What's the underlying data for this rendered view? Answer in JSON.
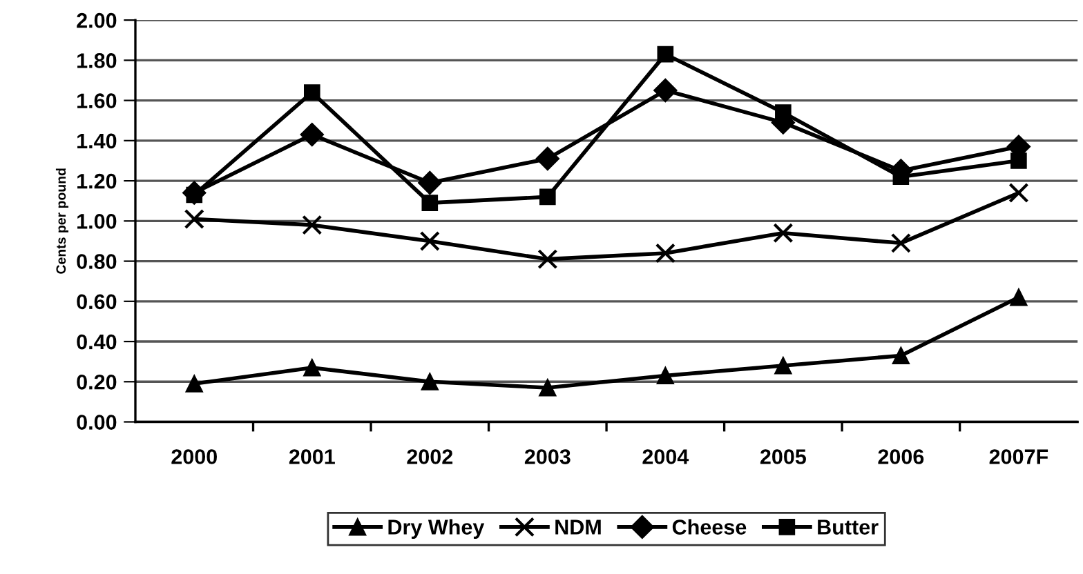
{
  "chart_data": {
    "type": "line",
    "ylabel": "Cents per pound",
    "categories": [
      "2000",
      "2001",
      "2002",
      "2003",
      "2004",
      "2005",
      "2006",
      "2007F"
    ],
    "ylim": [
      0,
      2
    ],
    "yticks": [
      {
        "value": 0,
        "label": "0.00"
      },
      {
        "value": 0.2,
        "label": "0.20"
      },
      {
        "value": 0.4,
        "label": "0.40"
      },
      {
        "value": 0.6,
        "label": "0.60"
      },
      {
        "value": 0.8,
        "label": "0.80"
      },
      {
        "value": 1.0,
        "label": "1.00"
      },
      {
        "value": 1.2,
        "label": "1.20"
      },
      {
        "value": 1.4,
        "label": "1.40"
      },
      {
        "value": 1.6,
        "label": "1.60"
      },
      {
        "value": 1.8,
        "label": "1.80"
      },
      {
        "value": 2.0,
        "label": "2.00"
      }
    ],
    "grid": "y",
    "legend": "bottom",
    "line_style": "solid",
    "series": [
      {
        "name": "Dry Whey",
        "color": "#000000",
        "marker": "triangle",
        "values": [
          0.19,
          0.27,
          0.2,
          0.17,
          0.23,
          0.28,
          0.33,
          0.62
        ]
      },
      {
        "name": "NDM",
        "color": "#000000",
        "marker": "cross",
        "values": [
          1.01,
          0.98,
          0.9,
          0.81,
          0.84,
          0.94,
          0.89,
          1.14
        ]
      },
      {
        "name": "Cheese",
        "color": "#000000",
        "marker": "diamond",
        "values": [
          1.14,
          1.43,
          1.19,
          1.31,
          1.65,
          1.49,
          1.25,
          1.37
        ]
      },
      {
        "name": "Butter",
        "color": "#000000",
        "marker": "square",
        "values": [
          1.13,
          1.64,
          1.09,
          1.12,
          1.83,
          1.54,
          1.22,
          1.3
        ]
      }
    ]
  }
}
